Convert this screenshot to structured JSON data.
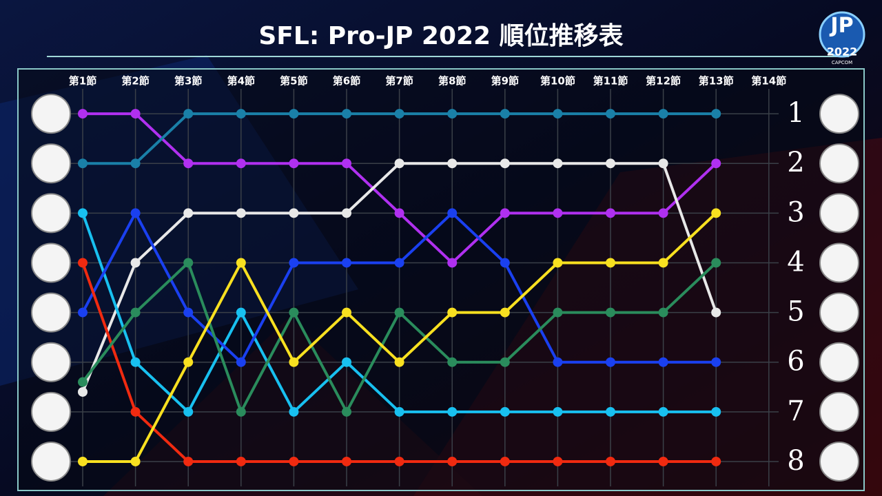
{
  "chart_data": {
    "type": "line",
    "title": "SFL: Pro-JP 2022  順位推移表",
    "logo": {
      "text": "JP",
      "year": "2022",
      "brand": "CAPCOM"
    },
    "categories": [
      "第1節",
      "第2節",
      "第3節",
      "第4節",
      "第5節",
      "第6節",
      "第7節",
      "第8節",
      "第9節",
      "第10節",
      "第11節",
      "第12節",
      "第13節",
      "第14節"
    ],
    "ylim": [
      0.5,
      8.5
    ],
    "y_inverted": true,
    "yticks": [
      1,
      2,
      3,
      4,
      5,
      6,
      7,
      8
    ],
    "grid": true,
    "series": [
      {
        "color": "#b030f0",
        "values": [
          1,
          1,
          2,
          2,
          2,
          2,
          3,
          4,
          3,
          3,
          3,
          3,
          2,
          null
        ]
      },
      {
        "color": "#1a80a8",
        "values": [
          2,
          2,
          1,
          1,
          1,
          1,
          1,
          1,
          1,
          1,
          1,
          1,
          1,
          null
        ]
      },
      {
        "color": "#e8e8e8",
        "values": [
          6.6,
          4,
          3,
          3,
          3,
          3,
          2,
          2,
          2,
          2,
          2,
          2,
          5,
          null
        ]
      },
      {
        "color": "#18c0f0",
        "values": [
          3,
          6,
          7,
          5,
          7,
          6,
          7,
          7,
          7,
          7,
          7,
          7,
          7,
          null
        ]
      },
      {
        "color": "#1a40f0",
        "values": [
          5,
          3,
          5,
          6,
          4,
          4,
          4,
          3,
          4,
          6,
          6,
          6,
          6,
          null
        ]
      },
      {
        "color": "#f02a10",
        "values": [
          4,
          7,
          8,
          8,
          8,
          8,
          8,
          8,
          8,
          8,
          8,
          8,
          8,
          null
        ]
      },
      {
        "color": "#2a8c5c",
        "values": [
          6.4,
          5,
          4,
          7,
          5,
          7,
          5,
          6,
          6,
          5,
          5,
          5,
          4,
          null
        ]
      },
      {
        "color": "#f8e020",
        "values": [
          8,
          8,
          6,
          4,
          6,
          5,
          6,
          5,
          5,
          4,
          4,
          4,
          3,
          null
        ]
      }
    ]
  }
}
